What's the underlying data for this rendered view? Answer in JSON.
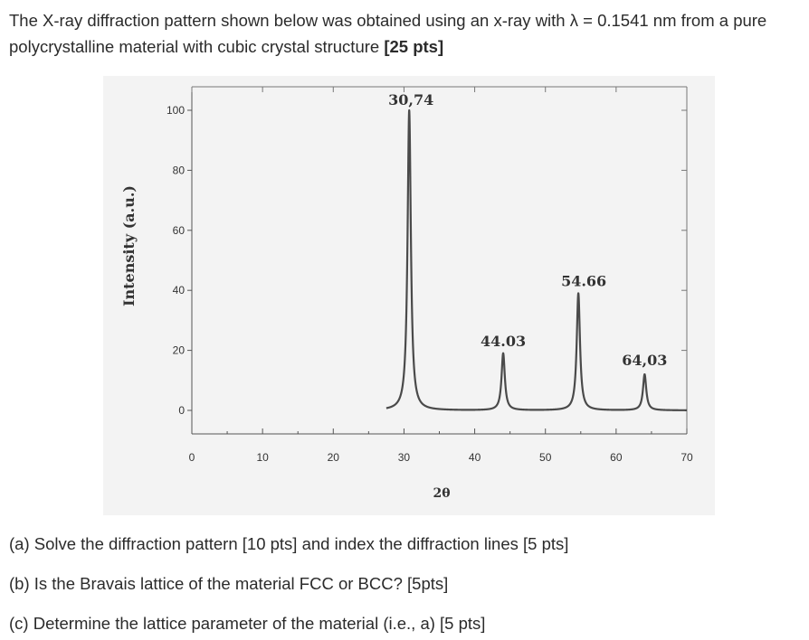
{
  "intro": {
    "text": "The X-ray diffraction pattern shown below was obtained using an x-ray with λ = 0.1541 nm from a pure polycrystalline material with cubic crystal structure",
    "points": "[25 pts]"
  },
  "questions": [
    "(a) Solve the diffraction pattern [10 pts] and index the diffraction lines [5 pts]",
    "(b) Is the Bravais lattice of the material FCC or BCC? [5pts]",
    "(c) Determine the lattice parameter of the material (i.e., a) [5 pts]"
  ],
  "chart_data": {
    "type": "line",
    "xlabel": "2θ",
    "ylabel": "Intensity (a.u.)",
    "xlim": [
      0,
      70
    ],
    "ylim": [
      0,
      100
    ],
    "x_ticks": [
      0,
      10,
      20,
      30,
      40,
      50,
      60,
      70
    ],
    "y_ticks": [
      0,
      20,
      40,
      60,
      80,
      100
    ],
    "baseline": 0,
    "peaks": [
      {
        "x": 30.74,
        "y": 100,
        "label": "30,74"
      },
      {
        "x": 44.03,
        "y": 19,
        "label": "44.03"
      },
      {
        "x": 54.66,
        "y": 39,
        "label": "54.66"
      },
      {
        "x": 64.03,
        "y": 12,
        "label": "64,03"
      }
    ],
    "colors": {
      "line": "#4a4a4a",
      "background": "#f3f3f3"
    }
  }
}
